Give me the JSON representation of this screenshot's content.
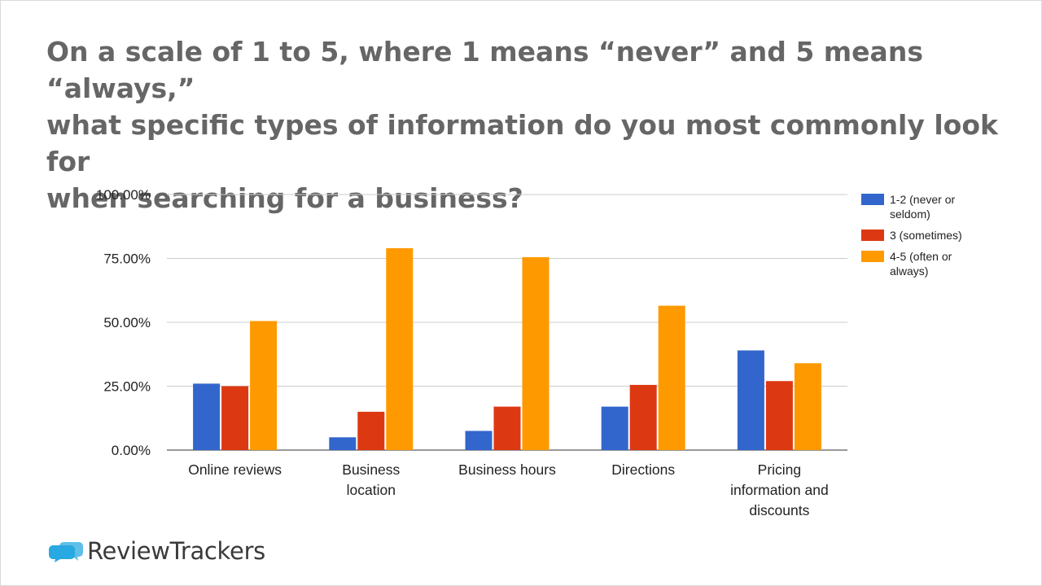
{
  "title_lines": [
    "On a scale of 1 to 5, where 1 means “never” and 5 means “always,”",
    "what specific types of information do you most commonly look for",
    "when searching for a business?"
  ],
  "brand": {
    "part1": "Review",
    "part2": "Trackers",
    "icon": "speech-bubbles-icon",
    "icon_color": "#29a9e1"
  },
  "chart_data": {
    "type": "bar",
    "title": "On a scale of 1 to 5, where 1 means “never” and 5 means “always,” what specific types of information do you most commonly look for when searching for a business?",
    "categories": [
      [
        "Online reviews"
      ],
      [
        "Business",
        "location"
      ],
      [
        "Business hours"
      ],
      [
        "Directions"
      ],
      [
        "Pricing",
        "information and",
        "discounts"
      ]
    ],
    "series": [
      {
        "name": [
          "1-2 (never or",
          "seldom)"
        ],
        "color": "#3366cc",
        "values": [
          26,
          5,
          7.5,
          17,
          39
        ]
      },
      {
        "name": [
          "3 (sometimes)"
        ],
        "color": "#dc3912",
        "values": [
          25,
          15,
          17,
          25.5,
          27
        ]
      },
      {
        "name": [
          "4-5 (often or",
          "always)"
        ],
        "color": "#ff9900",
        "values": [
          50.5,
          79,
          75.5,
          56.5,
          34
        ]
      }
    ],
    "ylim": [
      0,
      100
    ],
    "yticks": [
      {
        "value": 0,
        "label": "0.00%"
      },
      {
        "value": 25,
        "label": "25.00%"
      },
      {
        "value": 50,
        "label": "50.00%"
      },
      {
        "value": 75,
        "label": "75.00%"
      },
      {
        "value": 100,
        "label": "100.00%"
      }
    ],
    "grid": true,
    "legend": "right",
    "xlabel": "",
    "ylabel": ""
  }
}
